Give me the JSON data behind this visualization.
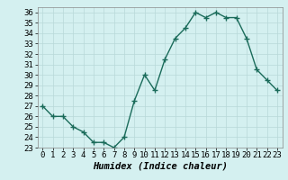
{
  "xlabel": "Humidex (Indice chaleur)",
  "x": [
    0,
    1,
    2,
    3,
    4,
    5,
    6,
    7,
    8,
    9,
    10,
    11,
    12,
    13,
    14,
    15,
    16,
    17,
    18,
    19,
    20,
    21,
    22,
    23
  ],
  "y": [
    27.0,
    26.0,
    26.0,
    25.0,
    24.5,
    23.5,
    23.5,
    23.0,
    24.0,
    27.5,
    30.0,
    28.5,
    31.5,
    33.5,
    34.5,
    36.0,
    35.5,
    36.0,
    35.5,
    35.5,
    33.5,
    30.5,
    29.5,
    28.5
  ],
  "line_color": "#1a6b5a",
  "marker": "+",
  "marker_size": 4,
  "marker_lw": 1.0,
  "line_width": 1.0,
  "bg_color": "#d4f0f0",
  "grid_color": "#b8d8d8",
  "ylim": [
    23,
    36.5
  ],
  "yticks": [
    23,
    24,
    25,
    26,
    27,
    28,
    29,
    30,
    31,
    32,
    33,
    34,
    35,
    36
  ],
  "xticks": [
    0,
    1,
    2,
    3,
    4,
    5,
    6,
    7,
    8,
    9,
    10,
    11,
    12,
    13,
    14,
    15,
    16,
    17,
    18,
    19,
    20,
    21,
    22,
    23
  ],
  "axis_label_fontsize": 7.5,
  "tick_fontsize": 6.5
}
